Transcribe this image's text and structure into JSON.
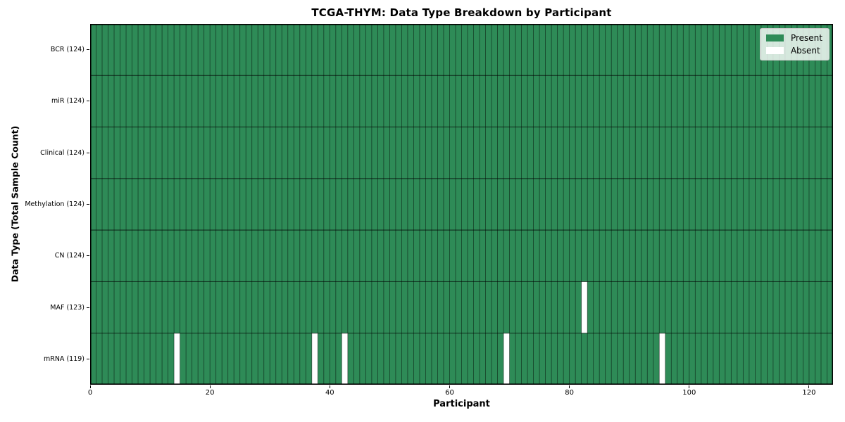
{
  "chart_data": {
    "type": "heatmap",
    "title": "TCGA-THYM: Data Type Breakdown by Participant",
    "xlabel": "Participant",
    "ylabel": "Data Type (Total Sample Count)",
    "n_participants": 124,
    "x_range": [
      0,
      124
    ],
    "x_ticks": [
      0,
      20,
      40,
      60,
      80,
      100,
      120
    ],
    "legend_position": "upper right",
    "rows": [
      {
        "label": "BCR (124)",
        "data_type": "BCR",
        "present_count": 124,
        "absent_participants": []
      },
      {
        "label": "miR (124)",
        "data_type": "miR",
        "present_count": 124,
        "absent_participants": []
      },
      {
        "label": "Clinical (124)",
        "data_type": "Clinical",
        "present_count": 124,
        "absent_participants": []
      },
      {
        "label": "Methylation (124)",
        "data_type": "Methylation",
        "present_count": 124,
        "absent_participants": []
      },
      {
        "label": "CN (124)",
        "data_type": "CN",
        "present_count": 124,
        "absent_participants": []
      },
      {
        "label": "MAF (123)",
        "data_type": "MAF",
        "present_count": 123,
        "absent_participants": [
          82
        ]
      },
      {
        "label": "mRNA (119)",
        "data_type": "mRNA",
        "present_count": 119,
        "absent_participants": [
          14,
          37,
          42,
          69,
          95
        ]
      }
    ],
    "legend": [
      {
        "label": "Present",
        "color": "#2e8b57"
      },
      {
        "label": "Absent",
        "color": "#ffffff"
      }
    ],
    "colors": {
      "present": "#2e8b57",
      "absent": "#ffffff",
      "cell_border": "rgba(0,0,0,0.55)",
      "row_border": "rgba(0,0,0,0.6)",
      "axes_border": "#000000",
      "background": "#ffffff"
    }
  }
}
